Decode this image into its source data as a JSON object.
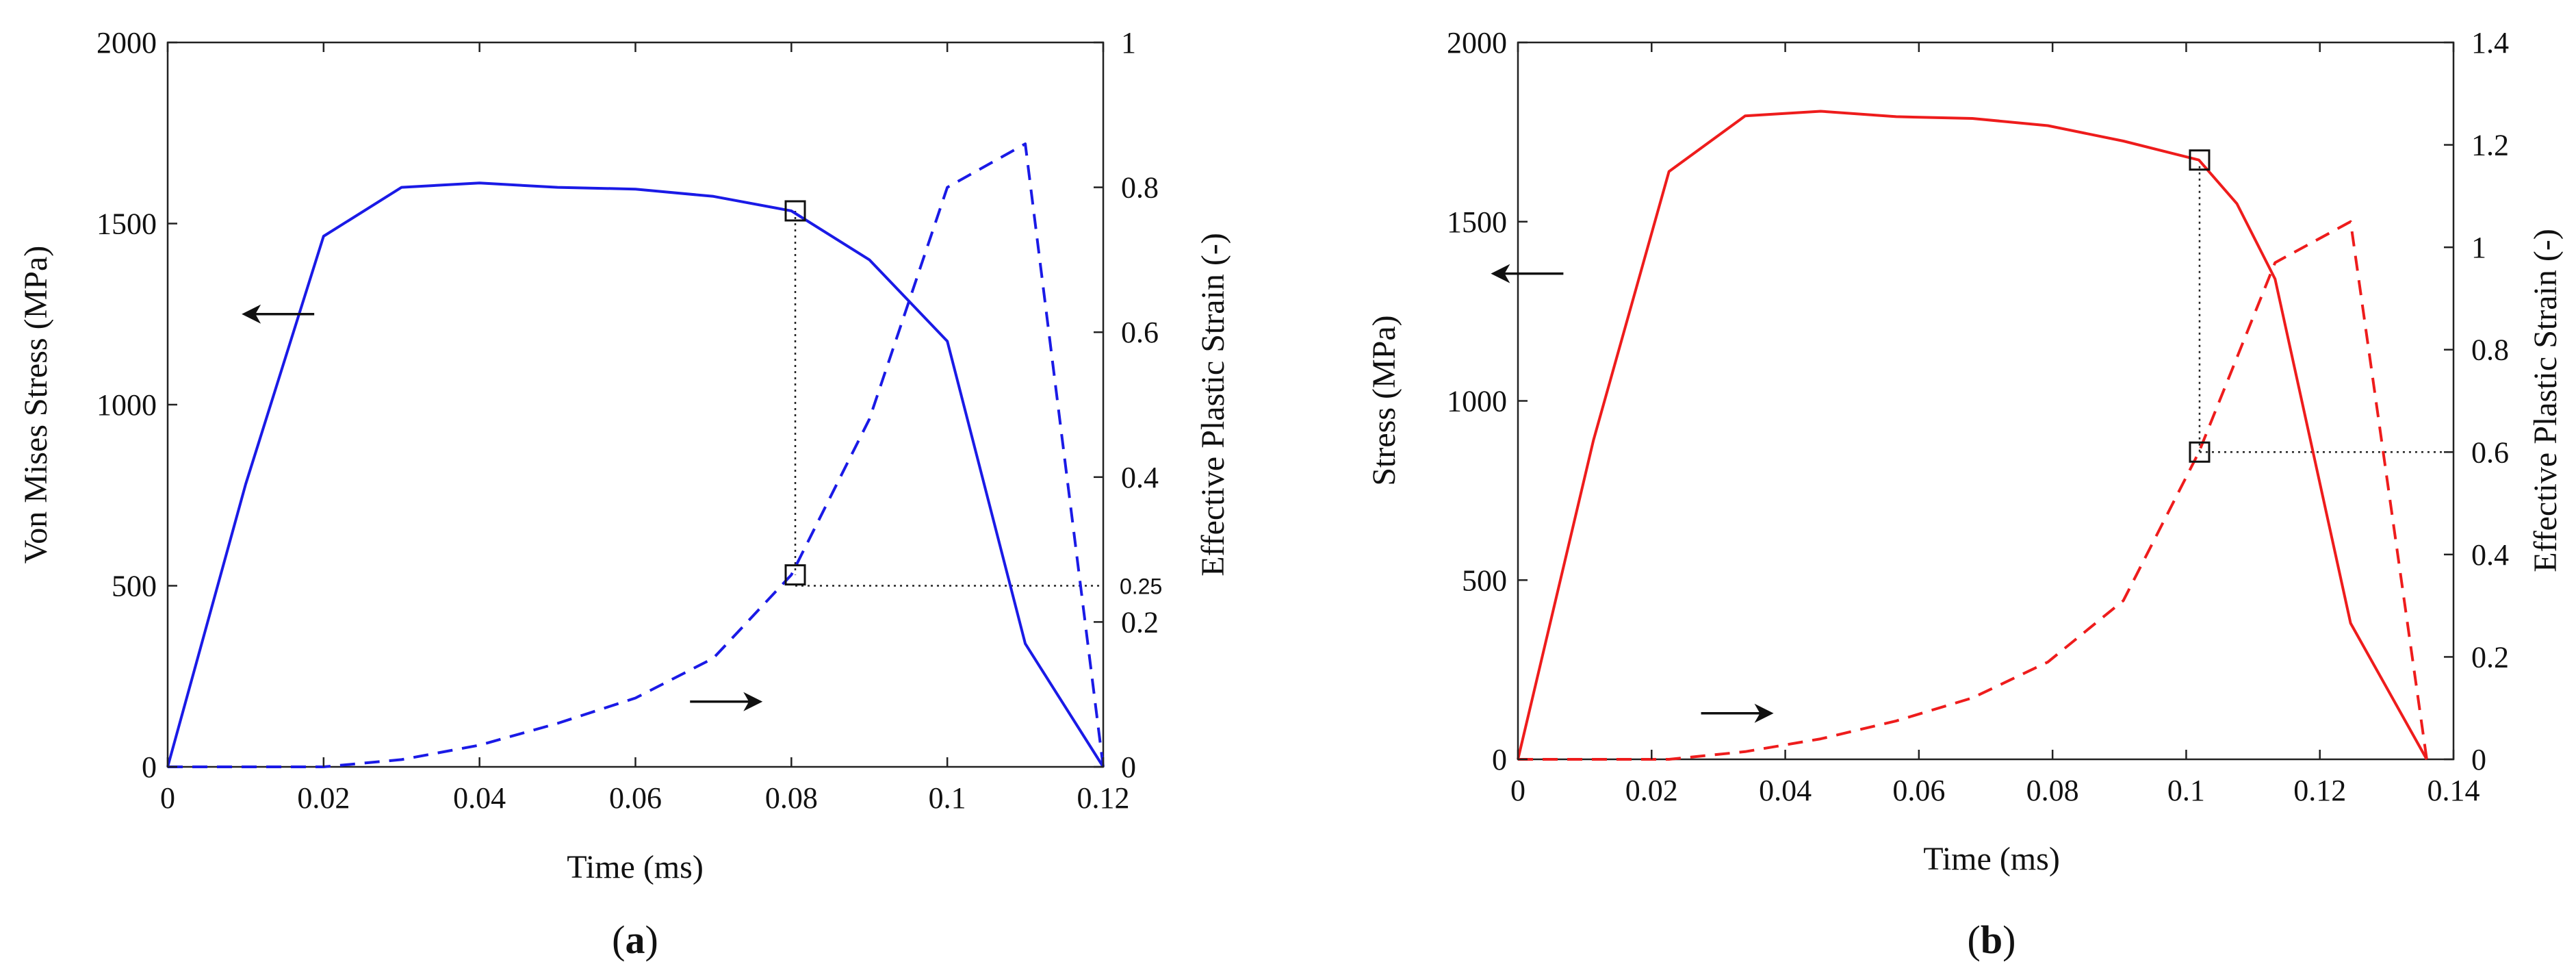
{
  "chart_data": [
    {
      "type": "line",
      "panel": "a",
      "caption_left": "(",
      "caption_letter": "a",
      "caption_right": ")",
      "color": "#1a1ae6",
      "xlabel": "Time (ms)",
      "ylabel_left": "Von Mises Stress (MPa)",
      "ylabel_right": "Effective Plastic Strain (-)",
      "xlim": [
        0,
        0.12
      ],
      "ylim_left": [
        0,
        2000
      ],
      "ylim_right": [
        0,
        1
      ],
      "xticks": [
        "0",
        "0.02",
        "0.04",
        "0.06",
        "0.08",
        "0.1",
        "0.12"
      ],
      "yticks_left": [
        "0",
        "500",
        "1000",
        "1500",
        "2000"
      ],
      "yticks_right": [
        "0",
        "0.2",
        "0.4",
        "0.6",
        "0.8",
        "1"
      ],
      "extra_right_tick": "0.25",
      "series": [
        {
          "name": "Von Mises Stress",
          "axis": "left",
          "style": "solid",
          "x": [
            0,
            0.01,
            0.02,
            0.03,
            0.04,
            0.05,
            0.06,
            0.07,
            0.08,
            0.09,
            0.1,
            0.11,
            0.12
          ],
          "y": [
            0,
            780,
            1465,
            1600,
            1612,
            1600,
            1595,
            1575,
            1535,
            1400,
            1175,
            340,
            0
          ]
        },
        {
          "name": "Effective Plastic Strain",
          "axis": "right",
          "style": "dashed",
          "x": [
            0,
            0.01,
            0.02,
            0.03,
            0.04,
            0.05,
            0.06,
            0.07,
            0.08,
            0.09,
            0.1,
            0.11,
            0.12
          ],
          "y": [
            0,
            0,
            0,
            0.01,
            0.03,
            0.06,
            0.095,
            0.15,
            0.265,
            0.48,
            0.8,
            0.86,
            0
          ]
        }
      ],
      "markers": [
        {
          "x": 0.0805,
          "y": 1535,
          "axis": "left"
        },
        {
          "x": 0.0805,
          "y": 0.265,
          "axis": "right"
        }
      ],
      "dotted_vertical_x": 0.0805,
      "dotted_horizontal_y_right": 0.25,
      "arrows": [
        {
          "direction": "left",
          "x": 0.0188,
          "y": 1250,
          "axis": "left"
        },
        {
          "direction": "right",
          "x": 0.067,
          "y": 0.09,
          "axis": "right"
        }
      ]
    },
    {
      "type": "line",
      "panel": "b",
      "caption_left": "(",
      "caption_letter": "b",
      "caption_right": ")",
      "color": "#ee1c1c",
      "xlabel": "Time (ms)",
      "ylabel_left": "Stress (MPa)",
      "ylabel_right": "Effective Plastic Strain (-)",
      "xlim": [
        0,
        0.14
      ],
      "ylim_left": [
        0,
        2000
      ],
      "ylim_right": [
        0,
        1.4
      ],
      "xticks": [
        "0",
        "0.02",
        "0.04",
        "0.06",
        "0.08",
        "0.1",
        "0.12",
        "0.14"
      ],
      "yticks_left": [
        "0",
        "500",
        "1000",
        "1500",
        "2000"
      ],
      "yticks_right": [
        "0",
        "0.2",
        "0.4",
        "0.6",
        "0.8",
        "1",
        "1.2",
        "1.4"
      ],
      "series": [
        {
          "name": "Stress",
          "axis": "left",
          "style": "solid",
          "x": [
            0,
            0.0113,
            0.0226,
            0.034,
            0.0453,
            0.0566,
            0.068,
            0.0793,
            0.0906,
            0.1019,
            0.1076,
            0.1133,
            0.1246,
            0.136
          ],
          "y": [
            0,
            890,
            1640,
            1795,
            1808,
            1793,
            1788,
            1768,
            1725,
            1672,
            1550,
            1340,
            380,
            0
          ]
        },
        {
          "name": "Effective Plastic Strain",
          "axis": "right",
          "style": "dashed",
          "x": [
            0,
            0.0113,
            0.0226,
            0.034,
            0.0453,
            0.0566,
            0.068,
            0.0793,
            0.0906,
            0.1019,
            0.1133,
            0.1246,
            0.136
          ],
          "y": [
            0,
            0,
            0,
            0.015,
            0.04,
            0.075,
            0.12,
            0.19,
            0.31,
            0.6,
            0.97,
            1.05,
            0
          ]
        }
      ],
      "markers": [
        {
          "x": 0.102,
          "y": 1672,
          "axis": "left"
        },
        {
          "x": 0.102,
          "y": 0.6,
          "axis": "right"
        }
      ],
      "dotted_vertical_x": 0.102,
      "dotted_horizontal_y_right": 0.6,
      "arrows": [
        {
          "direction": "left",
          "x": 0.0068,
          "y": 1355,
          "axis": "left"
        },
        {
          "direction": "right",
          "x": 0.0274,
          "y": 0.09,
          "axis": "right"
        }
      ]
    }
  ]
}
